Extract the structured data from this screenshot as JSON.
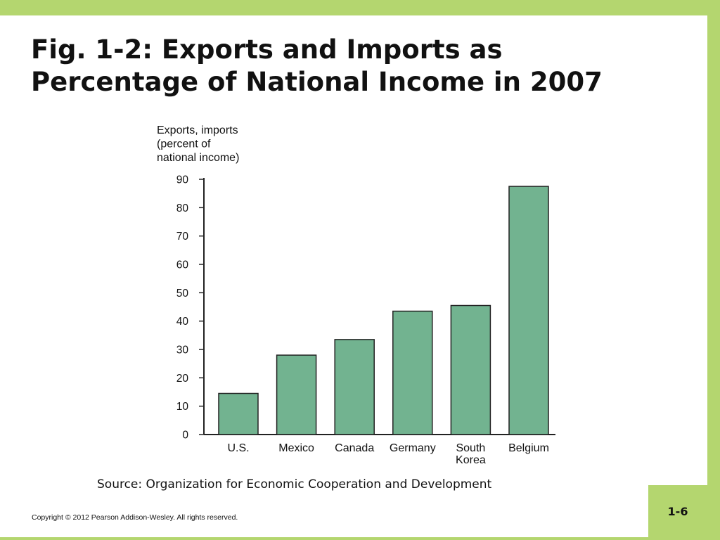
{
  "slide": {
    "title_line1": "Fig. 1-2: Exports and Imports as",
    "title_line2": "Percentage of National Income in 2007",
    "source": "Source: Organization for Economic Cooperation and Development",
    "copyright": "Copyright © 2012 Pearson Addison-Wesley. All rights reserved.",
    "page_number": "1-6"
  },
  "colors": {
    "frame": "#b4d66f",
    "bar_fill": "#72b390",
    "bar_stroke": "#222222",
    "axis": "#222222",
    "text": "#111111"
  },
  "chart_data": {
    "type": "bar",
    "title": "",
    "ylabel_lines": [
      "Exports, imports",
      "(percent of",
      "national income)"
    ],
    "xlabel": "",
    "categories": [
      [
        "U.S."
      ],
      [
        "Mexico"
      ],
      [
        "Canada"
      ],
      [
        "Germany"
      ],
      [
        "South",
        "Korea"
      ],
      [
        "Belgium"
      ]
    ],
    "values": [
      14.5,
      28,
      33.5,
      43.5,
      45.5,
      87.5
    ],
    "ylim": [
      0,
      90
    ],
    "yticks": [
      0,
      10,
      20,
      30,
      40,
      50,
      60,
      70,
      80,
      90
    ],
    "grid": false,
    "legend": false
  }
}
